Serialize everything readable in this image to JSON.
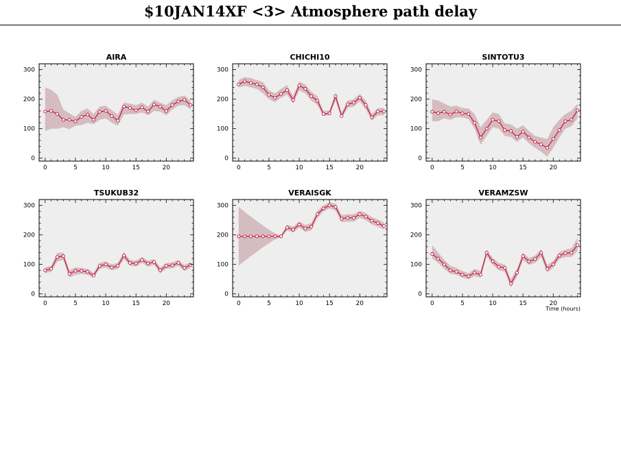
{
  "page": {
    "title": "$10JAN14XF <3>  Atmosphere path delay",
    "xlabel": "Time (hours)"
  },
  "colors": {
    "panel_bg": "#eeeeee",
    "band": "#d5bcc0",
    "line": "#c0143c"
  },
  "chart_data": [
    {
      "type": "line",
      "title": "AIRA",
      "xlim": [
        -1,
        24.5
      ],
      "ylim": [
        -10,
        320
      ],
      "xticks": [
        0,
        5,
        10,
        15,
        20
      ],
      "yticks": [
        0,
        100,
        200,
        300
      ],
      "x": [
        0,
        1,
        2,
        3,
        4,
        5,
        6,
        7,
        8,
        9,
        10,
        11,
        12,
        13,
        14,
        15,
        16,
        17,
        18,
        19,
        20,
        21,
        22,
        23,
        24
      ],
      "y": [
        158,
        160,
        150,
        130,
        130,
        125,
        140,
        148,
        130,
        157,
        160,
        143,
        127,
        175,
        170,
        162,
        172,
        158,
        182,
        175,
        160,
        180,
        192,
        198,
        180
      ],
      "low": [
        92,
        100,
        100,
        105,
        98,
        110,
        112,
        120,
        115,
        130,
        135,
        120,
        110,
        148,
        150,
        150,
        155,
        145,
        160,
        158,
        145,
        165,
        178,
        180,
        165
      ],
      "high": [
        240,
        232,
        215,
        165,
        152,
        140,
        160,
        168,
        150,
        175,
        178,
        162,
        148,
        188,
        185,
        180,
        188,
        175,
        198,
        188,
        180,
        196,
        208,
        212,
        195
      ]
    },
    {
      "type": "line",
      "title": "CHICHI10",
      "xlim": [
        -1,
        24.5
      ],
      "ylim": [
        -10,
        320
      ],
      "xticks": [
        0,
        5,
        10,
        15,
        20
      ],
      "yticks": [
        0,
        100,
        200,
        300
      ],
      "x": [
        0,
        1,
        2,
        3,
        4,
        5,
        6,
        7,
        8,
        9,
        10,
        11,
        12,
        13,
        14,
        15,
        16,
        17,
        18,
        19,
        20,
        21,
        22,
        23,
        24
      ],
      "y": [
        250,
        260,
        255,
        250,
        240,
        215,
        205,
        218,
        230,
        197,
        246,
        235,
        210,
        195,
        150,
        152,
        210,
        143,
        183,
        188,
        205,
        180,
        138,
        158,
        158
      ],
      "low": [
        240,
        245,
        240,
        235,
        220,
        200,
        190,
        205,
        215,
        185,
        230,
        220,
        195,
        180,
        143,
        145,
        195,
        135,
        170,
        175,
        192,
        165,
        128,
        145,
        145
      ],
      "high": [
        265,
        275,
        272,
        265,
        258,
        230,
        220,
        235,
        248,
        210,
        260,
        250,
        225,
        210,
        160,
        162,
        222,
        155,
        195,
        200,
        218,
        195,
        150,
        170,
        170
      ]
    },
    {
      "type": "line",
      "title": "SINTOTU3",
      "xlim": [
        -1,
        24.5
      ],
      "ylim": [
        -10,
        320
      ],
      "xticks": [
        0,
        5,
        10,
        15,
        20
      ],
      "yticks": [
        0,
        100,
        200,
        300
      ],
      "x": [
        0,
        1,
        2,
        3,
        4,
        5,
        6,
        7,
        8,
        9,
        10,
        11,
        12,
        13,
        14,
        15,
        16,
        17,
        18,
        19,
        20,
        21,
        22,
        23,
        24
      ],
      "y": [
        157,
        153,
        157,
        148,
        158,
        152,
        150,
        120,
        70,
        100,
        130,
        125,
        95,
        92,
        72,
        90,
        70,
        55,
        47,
        35,
        65,
        95,
        125,
        130,
        162
      ],
      "low": [
        125,
        125,
        135,
        130,
        138,
        138,
        132,
        100,
        45,
        75,
        105,
        100,
        75,
        72,
        55,
        70,
        50,
        35,
        22,
        5,
        35,
        70,
        100,
        108,
        135
      ],
      "high": [
        200,
        195,
        185,
        175,
        178,
        170,
        168,
        150,
        105,
        130,
        155,
        150,
        118,
        115,
        100,
        112,
        92,
        75,
        70,
        65,
        105,
        130,
        150,
        160,
        185
      ]
    },
    {
      "type": "line",
      "title": "TSUKUB32",
      "xlim": [
        -1,
        24.5
      ],
      "ylim": [
        -10,
        320
      ],
      "xticks": [
        0,
        5,
        10,
        15,
        20
      ],
      "yticks": [
        0,
        100,
        200,
        300
      ],
      "x": [
        0,
        1,
        2,
        3,
        4,
        5,
        6,
        7,
        8,
        9,
        10,
        11,
        12,
        13,
        14,
        15,
        16,
        17,
        18,
        19,
        20,
        21,
        22,
        23,
        24
      ],
      "y": [
        80,
        85,
        125,
        128,
        68,
        78,
        78,
        75,
        62,
        95,
        100,
        90,
        95,
        130,
        105,
        103,
        115,
        103,
        108,
        80,
        95,
        97,
        105,
        88,
        98
      ],
      "low": [
        70,
        75,
        110,
        115,
        55,
        65,
        68,
        65,
        55,
        85,
        90,
        80,
        85,
        118,
        95,
        93,
        105,
        93,
        98,
        70,
        85,
        87,
        95,
        78,
        88
      ],
      "high": [
        90,
        95,
        140,
        140,
        80,
        90,
        88,
        85,
        72,
        105,
        110,
        100,
        105,
        142,
        115,
        113,
        125,
        113,
        118,
        90,
        105,
        107,
        115,
        98,
        108
      ]
    },
    {
      "type": "line",
      "title": "VERAISGK",
      "xlim": [
        -1,
        24.5
      ],
      "ylim": [
        -10,
        320
      ],
      "xticks": [
        0,
        5,
        10,
        15,
        20
      ],
      "yticks": [
        0,
        100,
        200,
        300
      ],
      "x": [
        0,
        1,
        2,
        3,
        4,
        5,
        6,
        7,
        8,
        9,
        10,
        11,
        12,
        13,
        14,
        15,
        16,
        17,
        18,
        19,
        20,
        21,
        22,
        23,
        24
      ],
      "y": [
        195,
        195,
        195,
        195,
        195,
        195,
        195,
        195,
        225,
        218,
        235,
        222,
        228,
        270,
        290,
        300,
        295,
        255,
        258,
        258,
        270,
        262,
        248,
        240,
        230
      ],
      "low": [
        95,
        112,
        128,
        143,
        158,
        172,
        185,
        192,
        215,
        208,
        225,
        210,
        215,
        258,
        280,
        290,
        282,
        243,
        245,
        245,
        258,
        250,
        235,
        228,
        218
      ],
      "high": [
        295,
        278,
        262,
        247,
        232,
        218,
        205,
        198,
        235,
        228,
        245,
        234,
        240,
        282,
        300,
        310,
        306,
        267,
        270,
        270,
        282,
        274,
        260,
        252,
        242
      ]
    },
    {
      "type": "line",
      "title": "VERAMZSW",
      "xlim": [
        -1,
        24.5
      ],
      "ylim": [
        -10,
        320
      ],
      "xticks": [
        0,
        5,
        10,
        15,
        20
      ],
      "yticks": [
        0,
        100,
        200,
        300
      ],
      "x": [
        0,
        1,
        2,
        3,
        4,
        5,
        6,
        7,
        8,
        9,
        10,
        11,
        12,
        13,
        14,
        15,
        16,
        17,
        18,
        19,
        20,
        21,
        22,
        23,
        24
      ],
      "y": [
        135,
        120,
        100,
        80,
        75,
        65,
        60,
        72,
        65,
        140,
        110,
        92,
        88,
        35,
        72,
        128,
        110,
        118,
        140,
        85,
        100,
        130,
        138,
        140,
        165
      ],
      "low": [
        120,
        105,
        85,
        68,
        65,
        55,
        50,
        60,
        55,
        128,
        98,
        80,
        75,
        22,
        58,
        115,
        98,
        105,
        125,
        72,
        88,
        118,
        125,
        125,
        145
      ],
      "high": [
        165,
        140,
        115,
        95,
        88,
        78,
        70,
        85,
        78,
        150,
        122,
        105,
        100,
        50,
        85,
        140,
        122,
        130,
        152,
        98,
        112,
        142,
        150,
        155,
        190
      ]
    }
  ]
}
